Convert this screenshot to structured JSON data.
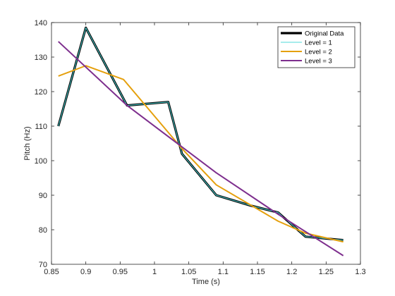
{
  "chart_data": {
    "type": "line",
    "xlabel": "Time (s)",
    "ylabel": "Pitch (Hz)",
    "xlim": [
      0.85,
      1.3
    ],
    "ylim": [
      70,
      140
    ],
    "xticks": [
      "0.85",
      "0.9",
      "0.95",
      "1",
      "1.05",
      "1.1",
      "1.15",
      "1.2",
      "1.25",
      "1.3"
    ],
    "yticks": [
      "70",
      "80",
      "90",
      "100",
      "110",
      "120",
      "130",
      "140"
    ],
    "grid": false,
    "legend_position": "top-right",
    "series": [
      {
        "name": "Original Data",
        "color": "#000000",
        "x": [
          0.86,
          0.9,
          0.96,
          1.02,
          1.04,
          1.09,
          1.14,
          1.18,
          1.22,
          1.275
        ],
        "y": [
          110,
          138.5,
          116,
          117,
          102,
          90,
          87,
          85,
          78,
          77
        ]
      },
      {
        "name": "Level = 1",
        "color": "#4dd8d8",
        "x": [
          0.86,
          0.9,
          0.96,
          1.02,
          1.04,
          1.09,
          1.14,
          1.18,
          1.22,
          1.275
        ],
        "y": [
          110,
          138.5,
          116,
          117,
          102,
          90,
          87,
          85,
          78,
          77
        ]
      },
      {
        "name": "Level = 2",
        "color": "#e5a00d",
        "x": [
          0.86,
          0.9,
          0.955,
          1.04,
          1.09,
          1.18,
          1.22,
          1.275
        ],
        "y": [
          124.5,
          127.5,
          123.5,
          103.5,
          93,
          82.5,
          79,
          76.5
        ]
      },
      {
        "name": "Level = 3",
        "color": "#7e2f8e",
        "x": [
          0.86,
          0.96,
          1.04,
          1.09,
          1.18,
          1.275
        ],
        "y": [
          134.5,
          116,
          104,
          96.5,
          84.5,
          72.5
        ]
      }
    ]
  }
}
